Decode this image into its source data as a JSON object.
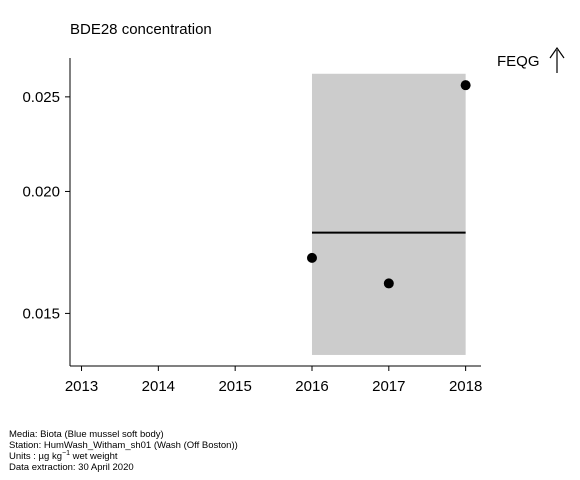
{
  "chart_data": {
    "type": "scatter",
    "title": "BDE28 concentration",
    "x_ticks": [
      "2013",
      "2014",
      "2015",
      "2016",
      "2017",
      "2018"
    ],
    "y_ticks": [
      "0.015",
      "0.020",
      "0.025"
    ],
    "y_scale": "log",
    "xlim": [
      2012.85,
      2018.2
    ],
    "ylim": [
      0.01325,
      0.0274
    ],
    "points": [
      {
        "x": 2016,
        "y": 0.0171
      },
      {
        "x": 2017,
        "y": 0.0161
      },
      {
        "x": 2018,
        "y": 0.0257
      }
    ],
    "trend": {
      "x": [
        2016,
        2018
      ],
      "y": [
        0.01815,
        0.01815
      ]
    },
    "band": {
      "x": [
        2016,
        2018
      ],
      "y": [
        0.0136,
        0.0264
      ],
      "color": "#cccccc"
    },
    "threshold": {
      "label": "FEQG",
      "note": "above plotted range"
    },
    "grid": false
  },
  "footer": {
    "media": "Media: Biota (Blue mussel soft body)",
    "station": "Station: HumWash_Witham_sh01 (Wash (Off Boston))",
    "units_prefix": "Units : µg kg",
    "units_exp": "−1",
    "units_suffix": " wet weight",
    "extraction": "Data extraction: 30 April 2020"
  }
}
